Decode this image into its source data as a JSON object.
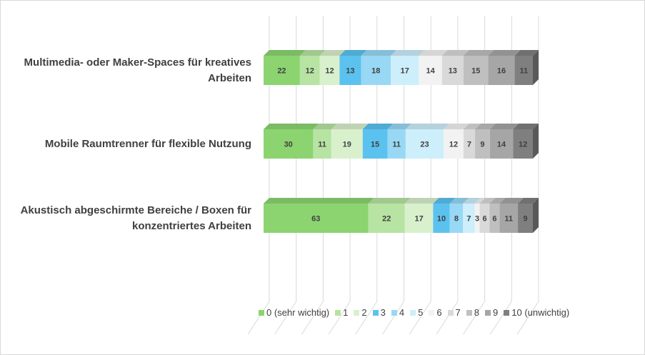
{
  "chart_data": {
    "type": "bar",
    "stacked": true,
    "orientation": "horizontal",
    "percent": true,
    "categories": [
      "Multimedia- oder Maker-Spaces für kreatives Arbeiten",
      "Mobile Raumtrenner für flexible Nutzung",
      "Akustisch abgeschirmte Bereiche / Boxen für konzentriertes Arbeiten"
    ],
    "category_lines": [
      [
        "Multimedia- oder Maker-Spaces für kreatives",
        "Arbeiten"
      ],
      [
        "Mobile Raumtrenner für flexible Nutzung"
      ],
      [
        "Akustisch abgeschirmte Bereiche / Boxen für",
        "konzentriertes Arbeiten"
      ]
    ],
    "series": [
      {
        "name": "0 (sehr wichtig)",
        "color": "#8bd470",
        "values": [
          22,
          30,
          63
        ]
      },
      {
        "name": "1",
        "color": "#b7e3a3",
        "values": [
          12,
          11,
          22
        ]
      },
      {
        "name": "2",
        "color": "#d9f0cd",
        "values": [
          12,
          19,
          17
        ]
      },
      {
        "name": "3",
        "color": "#5bc2ef",
        "values": [
          13,
          15,
          10
        ]
      },
      {
        "name": "4",
        "color": "#98d8f5",
        "values": [
          18,
          11,
          8
        ]
      },
      {
        "name": "5",
        "color": "#cdeefb",
        "values": [
          17,
          23,
          7
        ]
      },
      {
        "name": "6",
        "color": "#f2f2f2",
        "values": [
          14,
          12,
          3
        ]
      },
      {
        "name": "7",
        "color": "#d9d9d9",
        "values": [
          13,
          7,
          6
        ]
      },
      {
        "name": "8",
        "color": "#bfbfbf",
        "values": [
          15,
          9,
          6
        ]
      },
      {
        "name": "9",
        "color": "#a6a6a6",
        "values": [
          16,
          14,
          11
        ]
      },
      {
        "name": "10 (unwichtig)",
        "color": "#7f7f7f",
        "values": [
          11,
          12,
          9
        ]
      }
    ],
    "legend_position": "bottom",
    "grid": true,
    "perspective_3d": true
  }
}
